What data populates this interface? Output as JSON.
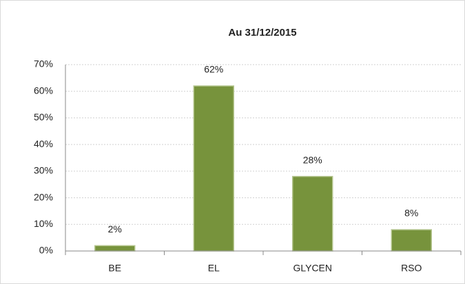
{
  "chart_data": {
    "type": "bar",
    "title": "Au 31/12/2015",
    "categories": [
      "BE",
      "EL",
      "GLYCEN",
      "RSO"
    ],
    "values": [
      2,
      62,
      28,
      8
    ],
    "value_labels": [
      "2%",
      "62%",
      "28%",
      "8%"
    ],
    "color": "#77933c",
    "ylim": [
      0,
      70
    ],
    "yticks": [
      {
        "value": 0,
        "label": "0%"
      },
      {
        "value": 10,
        "label": "10%"
      },
      {
        "value": 20,
        "label": "20%"
      },
      {
        "value": 30,
        "label": "30%"
      },
      {
        "value": 40,
        "label": "40%"
      },
      {
        "value": 50,
        "label": "50%"
      },
      {
        "value": 60,
        "label": "60%"
      },
      {
        "value": 70,
        "label": "70%"
      }
    ],
    "grid": true
  }
}
